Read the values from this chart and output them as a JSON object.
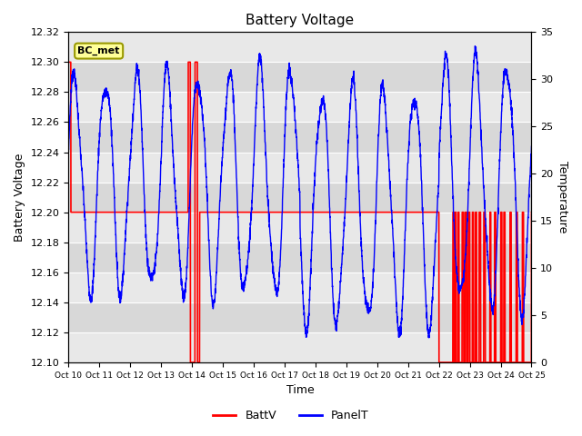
{
  "title": "Battery Voltage",
  "ylabel_left": "Battery Voltage",
  "ylabel_right": "Temperature",
  "xlabel": "Time",
  "annotation": "BC_met",
  "left_ylim": [
    12.1,
    12.32
  ],
  "right_ylim": [
    0,
    35
  ],
  "right_yticks": [
    0,
    5,
    10,
    15,
    20,
    25,
    30,
    35
  ],
  "left_yticks": [
    12.1,
    12.12,
    12.14,
    12.16,
    12.18,
    12.2,
    12.22,
    12.24,
    12.26,
    12.28,
    12.3,
    12.32
  ],
  "xtick_labels": [
    "Oct 10",
    "Oct 11",
    "Oct 12",
    "Oct 13",
    "Oct 14",
    "Oct 15",
    "Oct 16",
    "Oct 17",
    "Oct 18",
    "Oct 19",
    "Oct 20",
    "Oct 21",
    "Oct 22",
    "Oct 23",
    "Oct 24",
    "Oct 25"
  ],
  "bg_color": "#ffffff",
  "plot_bg_color": "#d8d8d8",
  "stripe_color": "#e8e8e8",
  "batt_color": "#ff0000",
  "panel_color": "#0000ff",
  "legend_batt": "BattV",
  "legend_panel": "PanelT",
  "grid_color": "#ffffff",
  "title_fontsize": 11,
  "label_fontsize": 9,
  "tick_fontsize": 8
}
